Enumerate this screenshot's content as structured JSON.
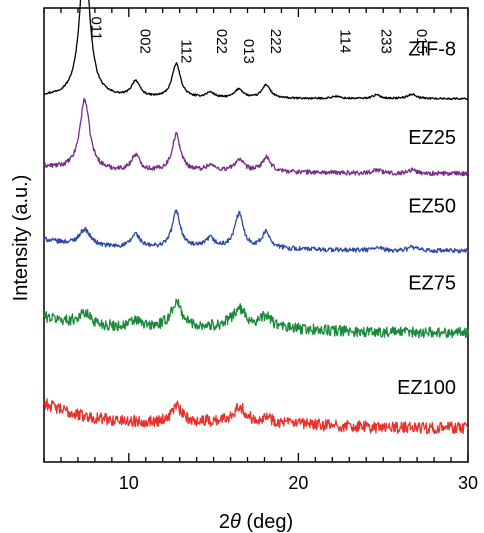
{
  "chart_data": {
    "type": "line",
    "title": "",
    "xlabel_prefix": "2",
    "xlabel_symbol": "θ",
    "xlabel_suffix": " (deg)",
    "ylabel": "Intensity (a.u.)",
    "xlim": [
      5,
      30
    ],
    "ylim": [
      0,
      10
    ],
    "xticks": [
      10,
      20,
      30
    ],
    "grid": false,
    "peak_labels": [
      {
        "text": "011",
        "x": 7.5
      },
      {
        "text": "002",
        "x": 10.4
      },
      {
        "text": "112",
        "x": 12.8
      },
      {
        "text": "022",
        "x": 14.9
      },
      {
        "text": "013",
        "x": 16.5
      },
      {
        "text": "222",
        "x": 18.1
      },
      {
        "text": "114",
        "x": 22.2
      },
      {
        "text": "233",
        "x": 24.6
      },
      {
        "text": "015",
        "x": 26.7
      }
    ],
    "series": [
      {
        "name": "ZIF-8",
        "color": "#000000",
        "baseline": 8.0,
        "background": [
          0.05,
          0.0
        ],
        "noise": 0.02,
        "peaks": [
          [
            7.4,
            3.2,
            0.35
          ],
          [
            10.4,
            0.35,
            0.3
          ],
          [
            12.8,
            0.75,
            0.3
          ],
          [
            14.8,
            0.12,
            0.3
          ],
          [
            16.5,
            0.2,
            0.3
          ],
          [
            18.1,
            0.3,
            0.3
          ],
          [
            22.2,
            0.05,
            0.3
          ],
          [
            24.6,
            0.08,
            0.3
          ],
          [
            26.7,
            0.1,
            0.3
          ]
        ]
      },
      {
        "name": "EZ25",
        "color": "#7a2a8c",
        "baseline": 6.35,
        "background": [
          0.15,
          0.05
        ],
        "noise": 0.05,
        "peaks": [
          [
            7.4,
            1.55,
            0.35
          ],
          [
            10.4,
            0.35,
            0.3
          ],
          [
            12.8,
            0.8,
            0.3
          ],
          [
            14.8,
            0.12,
            0.3
          ],
          [
            16.5,
            0.25,
            0.3
          ],
          [
            18.1,
            0.3,
            0.3
          ],
          [
            24.6,
            0.08,
            0.3
          ],
          [
            26.7,
            0.08,
            0.3
          ]
        ]
      },
      {
        "name": "EZ50",
        "color": "#2e48a8",
        "baseline": 4.65,
        "background": [
          0.25,
          0.05
        ],
        "noise": 0.05,
        "peaks": [
          [
            7.4,
            0.35,
            0.4
          ],
          [
            10.4,
            0.3,
            0.3
          ],
          [
            12.8,
            0.8,
            0.3
          ],
          [
            14.8,
            0.2,
            0.3
          ],
          [
            16.5,
            0.75,
            0.3
          ],
          [
            18.1,
            0.35,
            0.3
          ],
          [
            24.6,
            0.06,
            0.3
          ],
          [
            26.7,
            0.08,
            0.3
          ]
        ]
      },
      {
        "name": "EZ75",
        "color": "#1a8a3a",
        "baseline": 2.85,
        "background": [
          0.35,
          0.1
        ],
        "noise": 0.12,
        "peaks": [
          [
            7.4,
            0.25,
            0.5
          ],
          [
            10.4,
            0.15,
            0.4
          ],
          [
            12.8,
            0.55,
            0.4
          ],
          [
            16.5,
            0.4,
            0.5
          ],
          [
            18.1,
            0.25,
            0.4
          ]
        ]
      },
      {
        "name": "EZ100",
        "color": "#e8312a",
        "baseline": 0.75,
        "background": [
          0.55,
          0.12
        ],
        "noise": 0.13,
        "peaks": [
          [
            12.8,
            0.35,
            0.35
          ],
          [
            16.5,
            0.35,
            0.4
          ],
          [
            18.1,
            0.12,
            0.4
          ]
        ]
      }
    ]
  }
}
